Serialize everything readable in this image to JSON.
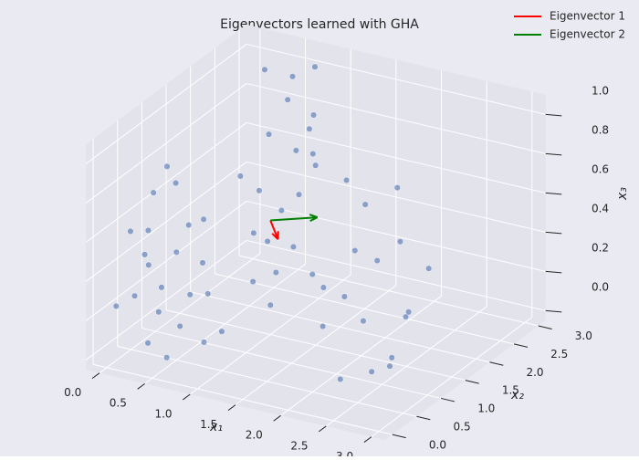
{
  "chart_data": {
    "type": "scatter3d",
    "title": "Eigenvectors learned with GHA",
    "xlabel": "x₁",
    "ylabel": "x₂",
    "zlabel": "x₃",
    "xlim": [
      -0.15,
      3.15
    ],
    "ylim": [
      -0.15,
      3.15
    ],
    "zlim": [
      -0.05,
      1.1
    ],
    "xticks": [
      {
        "value": 0,
        "label": "0.0"
      },
      {
        "value": 0.5,
        "label": "0.5"
      },
      {
        "value": 1,
        "label": "1.0"
      },
      {
        "value": 1.5,
        "label": "1.5"
      },
      {
        "value": 2,
        "label": "2.0"
      },
      {
        "value": 2.5,
        "label": "2.5"
      },
      {
        "value": 3,
        "label": "3.0"
      }
    ],
    "yticks": [
      {
        "value": 0,
        "label": "0.0"
      },
      {
        "value": 0.5,
        "label": "0.5"
      },
      {
        "value": 1,
        "label": "1.0"
      },
      {
        "value": 1.5,
        "label": "1.5"
      },
      {
        "value": 2,
        "label": "2.0"
      },
      {
        "value": 2.5,
        "label": "2.5"
      },
      {
        "value": 3,
        "label": "3.0"
      }
    ],
    "zticks": [
      {
        "value": 0,
        "label": "0.0"
      },
      {
        "value": 0.2,
        "label": "0.2"
      },
      {
        "value": 0.4,
        "label": "0.4"
      },
      {
        "value": 0.6,
        "label": "0.6"
      },
      {
        "value": 0.8,
        "label": "0.8"
      },
      {
        "value": 1,
        "label": "1.0"
      }
    ],
    "grid": true,
    "points": {
      "color": "#4c72b0",
      "x": [
        0.1,
        0.2,
        0.3,
        0.4,
        0.5,
        0.6,
        0.7,
        0.8,
        0.9,
        0.15,
        0.35,
        0.55,
        0.75,
        0.95,
        0.25,
        0.45,
        0.65,
        0.85,
        0.05,
        0.5,
        1.0,
        0.3,
        0.4,
        0.6,
        0.8,
        0.5,
        0.7,
        0.9,
        1.1,
        0.6,
        1.0,
        0.8,
        1.2,
        0.5,
        0.9,
        1.1,
        0.7,
        1.0,
        0.4,
        1.2,
        0.6,
        0.8,
        2.0,
        2.2,
        2.4,
        2.6,
        2.8,
        1.9,
        2.1,
        2.3,
        2.5,
        2.7,
        2.9,
        2.0,
        2.4,
        2.6,
        2.2,
        2.8,
        1.8,
        2.5
      ],
      "y": [
        0.3,
        0.2,
        0.4,
        0.1,
        0.5,
        0.3,
        0.2,
        0.5,
        0.4,
        0.5,
        0.2,
        0.1,
        0.6,
        0.2,
        0.6,
        0.4,
        0.5,
        0.1,
        0.1,
        0.3,
        0.5,
        0.3,
        2.5,
        2.6,
        2.4,
        2.2,
        2.0,
        1.8,
        1.9,
        2.7,
        2.3,
        2.1,
        1.6,
        2.4,
        2.6,
        2.2,
        1.7,
        1.5,
        2.0,
        2.0,
        1.9,
        2.8,
        1.2,
        1.0,
        0.8,
        0.6,
        1.4,
        0.9,
        1.4,
        0.6,
        1.2,
        1.0,
        0.8,
        0.5,
        1.5,
        1.3,
        0.7,
        0.6,
        1.1,
        0.9
      ],
      "z": [
        0.6,
        0.3,
        0.8,
        0.1,
        0.5,
        0.9,
        0.2,
        0.7,
        0.35,
        0.45,
        0.65,
        0.4,
        0.05,
        0.55,
        0.15,
        0.95,
        0.3,
        0.75,
        0.25,
        0.0,
        0.15,
        0.45,
        1.05,
        0.9,
        0.7,
        0.5,
        0.3,
        0.2,
        0.6,
        1.0,
        0.85,
        0.45,
        0.4,
        0.75,
        1.1,
        0.95,
        0.15,
        0.1,
        0.6,
        0.8,
        0.35,
        0.55,
        0.9,
        0.6,
        0.3,
        0.1,
        0.5,
        0.2,
        0.75,
        0.45,
        0.05,
        0.7,
        0.4,
        0.55,
        0.85,
        0.25,
        0.0,
        0.15,
        0.35,
        0.6
      ]
    },
    "series": [
      {
        "name": "Eigenvector 1",
        "color": "#ff0000",
        "x": [
          0.93,
          1.03
        ],
        "y": [
          1.63,
          1.6
        ],
        "z": [
          0.5,
          0.42
        ]
      },
      {
        "name": "Eigenvector 2",
        "color": "#008000",
        "x": [
          0.93,
          1.4
        ],
        "y": [
          1.63,
          1.72
        ],
        "z": [
          0.5,
          0.55
        ]
      }
    ],
    "legend": "upper right"
  }
}
